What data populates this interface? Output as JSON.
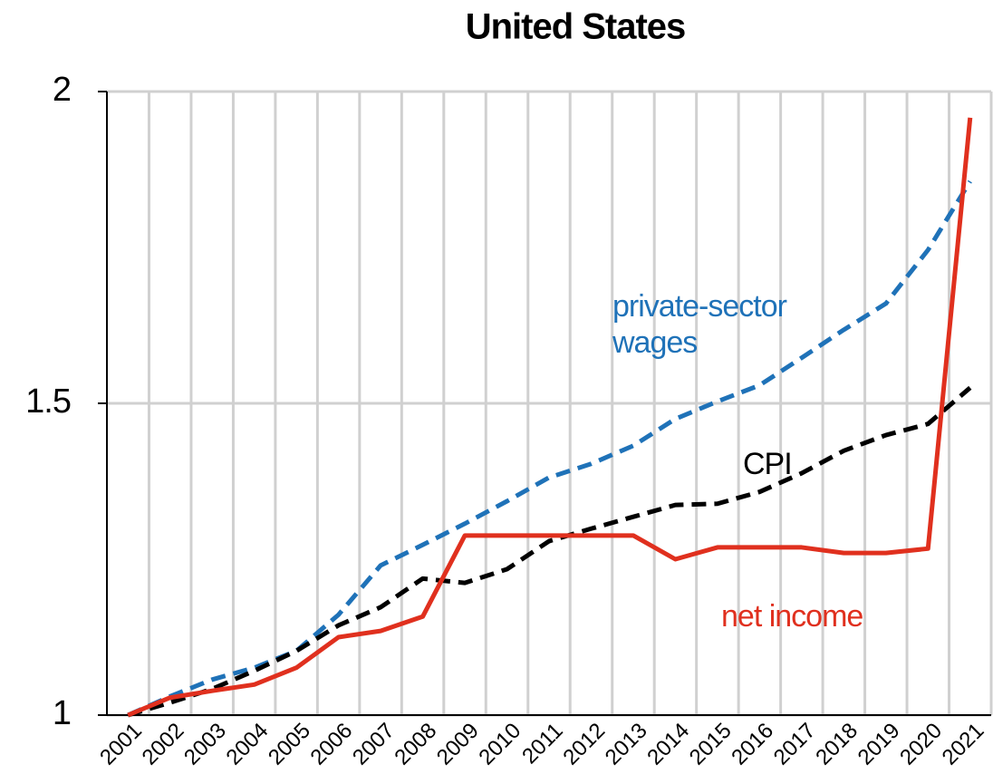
{
  "chart_data": {
    "type": "line",
    "title": "United States",
    "categories": [
      "2001",
      "2002",
      "2003",
      "2004",
      "2005",
      "2006",
      "2007",
      "2008",
      "2009",
      "2010",
      "2011",
      "2012",
      "2013",
      "2014",
      "2015",
      "2016",
      "2017",
      "2018",
      "2019",
      "2020",
      "2021"
    ],
    "series": [
      {
        "name": "private-sector wages",
        "color": "#1f72b8",
        "dash": true,
        "values": [
          1.0,
          1.03,
          1.057,
          1.076,
          1.103,
          1.161,
          1.24,
          1.273,
          1.307,
          1.343,
          1.381,
          1.403,
          1.432,
          1.475,
          1.503,
          1.529,
          1.573,
          1.618,
          1.66,
          1.746,
          1.856
        ]
      },
      {
        "name": "CPI",
        "color": "#000000",
        "dash": true,
        "values": [
          1.0,
          1.02,
          1.042,
          1.071,
          1.103,
          1.144,
          1.173,
          1.219,
          1.212,
          1.234,
          1.279,
          1.299,
          1.318,
          1.337,
          1.339,
          1.358,
          1.388,
          1.424,
          1.449,
          1.467,
          1.525
        ]
      },
      {
        "name": "net income",
        "color": "#e0301e",
        "dash": false,
        "values": [
          1.0,
          1.028,
          1.039,
          1.049,
          1.076,
          1.125,
          1.135,
          1.158,
          1.288,
          1.288,
          1.288,
          1.288,
          1.288,
          1.25,
          1.269,
          1.269,
          1.269,
          1.26,
          1.26,
          1.267,
          1.958
        ]
      }
    ],
    "ylim": [
      1,
      2
    ],
    "yticks": [
      1,
      1.5,
      2
    ],
    "grid": true
  }
}
